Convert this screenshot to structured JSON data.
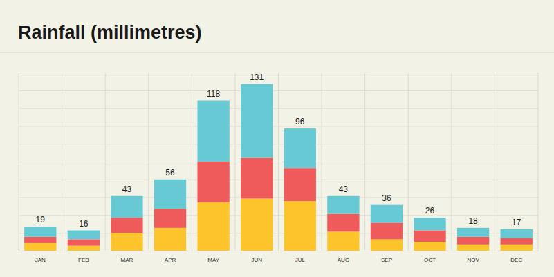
{
  "chart_data": {
    "type": "bar",
    "title": "Rainfall (millimetres)",
    "categories": [
      "JAN",
      "FEB",
      "MAR",
      "APR",
      "MAY",
      "JUN",
      "JUL",
      "AUG",
      "SEP",
      "OCT",
      "NOV",
      "DEC"
    ],
    "series": [
      {
        "color": "#fdc52b",
        "values": [
          6,
          4,
          14,
          18,
          38,
          41,
          39,
          15,
          9,
          7,
          5,
          5
        ]
      },
      {
        "color": "#ef5b5b",
        "values": [
          5,
          5,
          12,
          15,
          32,
          32,
          26,
          14,
          13,
          9,
          6,
          5
        ]
      },
      {
        "color": "#66c9d4",
        "values": [
          8,
          7,
          17,
          23,
          48,
          58,
          31,
          14,
          14,
          10,
          7,
          7
        ]
      }
    ],
    "totals": [
      19,
      16,
      43,
      56,
      118,
      131,
      96,
      43,
      36,
      26,
      18,
      17
    ],
    "stacked": true,
    "grid": true,
    "tick_labels": "x",
    "ylim": [
      0,
      140
    ],
    "yticks": [
      0,
      14,
      28,
      42,
      56,
      70,
      84,
      98,
      112,
      126,
      140
    ]
  }
}
